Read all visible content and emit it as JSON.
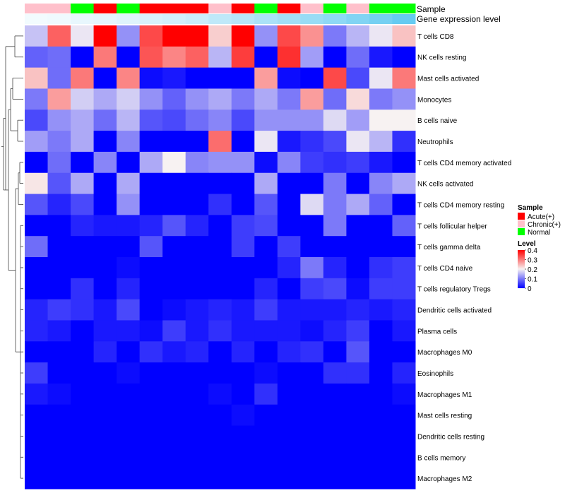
{
  "chart_data": {
    "type": "heatmap",
    "columns": 17,
    "sample_bar_label": "Sample",
    "gene_bar_label": "Gene expression level",
    "sample_annotation": [
      "Chronic(+)",
      "Chronic(+)",
      "Normal",
      "Acute(+)",
      "Normal",
      "Acute(+)",
      "Acute(+)",
      "Acute(+)",
      "Chronic(+)",
      "Acute(+)",
      "Normal",
      "Acute(+)",
      "Chronic(+)",
      "Normal",
      "Chronic(+)",
      "Normal",
      "Normal"
    ],
    "gene_expression_annotation": [
      0.08,
      0.1,
      0.14,
      0.16,
      0.2,
      0.24,
      0.28,
      0.32,
      0.4,
      0.45,
      0.52,
      0.58,
      0.64,
      0.7,
      0.78,
      0.86,
      0.95
    ],
    "rows": [
      "T cells CD8",
      "NK cells resting",
      "Mast cells activated",
      "Monocytes",
      "B cells naive",
      "Neutrophils",
      "T cells CD4 memory activated",
      "NK cells activated",
      "T cells CD4 memory resting",
      "T cells follicular helper",
      "T cells gamma delta",
      "T cells CD4 naive",
      "T cells regulatory  Tregs",
      "Dendritic cells activated",
      "Plasma cells",
      "Macrophages M0",
      "Eosinophils",
      "Macrophages M1",
      "Mast cells resting",
      "Dendritic cells resting",
      "B cells memory",
      "Macrophages M2"
    ],
    "values": [
      [
        0.16,
        0.32,
        0.19,
        0.4,
        0.12,
        0.34,
        0.4,
        0.4,
        0.23,
        0.4,
        0.12,
        0.34,
        0.28,
        0.1,
        0.15,
        0.19,
        0.24
      ],
      [
        0.08,
        0.09,
        0.0,
        0.3,
        0.0,
        0.33,
        0.29,
        0.32,
        0.15,
        0.35,
        0.0,
        0.36,
        0.13,
        0.0,
        0.09,
        0.02,
        0.0
      ],
      [
        0.24,
        0.09,
        0.3,
        0.0,
        0.29,
        0.01,
        0.02,
        0.0,
        0.0,
        0.0,
        0.27,
        0.01,
        0.0,
        0.34,
        0.06,
        0.19,
        0.3
      ],
      [
        0.1,
        0.27,
        0.17,
        0.14,
        0.17,
        0.12,
        0.08,
        0.12,
        0.14,
        0.1,
        0.14,
        0.1,
        0.27,
        0.09,
        0.22,
        0.1,
        0.12
      ],
      [
        0.06,
        0.12,
        0.14,
        0.09,
        0.15,
        0.07,
        0.06,
        0.09,
        0.11,
        0.06,
        0.12,
        0.12,
        0.12,
        0.18,
        0.13,
        0.2,
        0.2
      ],
      [
        0.13,
        0.1,
        0.14,
        0.0,
        0.11,
        0.0,
        0.0,
        0.0,
        0.31,
        0.0,
        0.19,
        0.02,
        0.04,
        0.06,
        0.19,
        0.15,
        0.04
      ],
      [
        0.0,
        0.09,
        0.0,
        0.11,
        0.0,
        0.14,
        0.2,
        0.11,
        0.12,
        0.12,
        0.01,
        0.11,
        0.05,
        0.04,
        0.05,
        0.02,
        0.0
      ],
      [
        0.21,
        0.07,
        0.14,
        0.0,
        0.14,
        0.0,
        0.0,
        0.0,
        0.0,
        0.0,
        0.14,
        0.0,
        0.0,
        0.1,
        0.0,
        0.11,
        0.14
      ],
      [
        0.07,
        0.03,
        0.06,
        0.0,
        0.12,
        0.0,
        0.0,
        0.0,
        0.04,
        0.0,
        0.07,
        0.0,
        0.18,
        0.1,
        0.14,
        0.08,
        0.0
      ],
      [
        0.0,
        0.0,
        0.03,
        0.02,
        0.02,
        0.03,
        0.07,
        0.03,
        0.0,
        0.05,
        0.06,
        0.0,
        0.0,
        0.1,
        0.0,
        0.0,
        0.08
      ],
      [
        0.09,
        0.0,
        0.0,
        0.0,
        0.0,
        0.07,
        0.0,
        0.0,
        0.0,
        0.05,
        0.0,
        0.05,
        0.0,
        0.0,
        0.0,
        0.0,
        0.0
      ],
      [
        0.0,
        0.0,
        0.0,
        0.0,
        0.01,
        0.0,
        0.0,
        0.0,
        0.0,
        0.0,
        0.0,
        0.03,
        0.1,
        0.03,
        0.0,
        0.04,
        0.05
      ],
      [
        0.0,
        0.0,
        0.04,
        0.0,
        0.03,
        0.0,
        0.0,
        0.0,
        0.0,
        0.0,
        0.03,
        0.0,
        0.05,
        0.06,
        0.01,
        0.05,
        0.05
      ],
      [
        0.03,
        0.05,
        0.04,
        0.02,
        0.06,
        0.0,
        0.01,
        0.02,
        0.03,
        0.02,
        0.05,
        0.02,
        0.02,
        0.02,
        0.03,
        0.02,
        0.03
      ],
      [
        0.03,
        0.02,
        0.0,
        0.02,
        0.02,
        0.01,
        0.05,
        0.02,
        0.04,
        0.02,
        0.02,
        0.02,
        0.01,
        0.03,
        0.05,
        0.0,
        0.02
      ],
      [
        0.0,
        0.0,
        0.0,
        0.03,
        0.0,
        0.04,
        0.02,
        0.03,
        0.0,
        0.03,
        0.0,
        0.03,
        0.04,
        0.0,
        0.07,
        0.0,
        0.0
      ],
      [
        0.05,
        0.0,
        0.0,
        0.0,
        0.01,
        0.0,
        0.0,
        0.0,
        0.0,
        0.0,
        0.01,
        0.0,
        0.0,
        0.04,
        0.04,
        0.0,
        0.03
      ],
      [
        0.02,
        0.01,
        0.0,
        0.0,
        0.0,
        0.0,
        0.0,
        0.0,
        0.01,
        0.0,
        0.04,
        0.0,
        0.0,
        0.0,
        0.0,
        0.0,
        0.01
      ],
      [
        0.0,
        0.0,
        0.0,
        0.0,
        0.0,
        0.0,
        0.0,
        0.0,
        0.0,
        0.01,
        0.0,
        0.0,
        0.0,
        0.0,
        0.0,
        0.0,
        0.0
      ],
      [
        0.0,
        0.0,
        0.0,
        0.0,
        0.0,
        0.0,
        0.0,
        0.0,
        0.0,
        0.0,
        0.0,
        0.0,
        0.0,
        0.0,
        0.0,
        0.0,
        0.0
      ],
      [
        0.0,
        0.0,
        0.0,
        0.0,
        0.0,
        0.0,
        0.0,
        0.0,
        0.0,
        0.0,
        0.0,
        0.0,
        0.0,
        0.0,
        0.0,
        0.0,
        0.0
      ],
      [
        0.0,
        0.0,
        0.0,
        0.0,
        0.0,
        0.0,
        0.0,
        0.0,
        0.0,
        0.0,
        0.0,
        0.0,
        0.0,
        0.0,
        0.0,
        0.0,
        0.0
      ]
    ],
    "color_scale": {
      "low": "#0000ff",
      "mid": "#f7f2f2",
      "high": "#ff0000",
      "min": 0,
      "mid_value": 0.2,
      "max": 0.4
    },
    "gene_bar_colors": {
      "low": "#ffffff",
      "high": "#5ec8f0"
    },
    "legend": {
      "sample_title": "Sample",
      "sample_entries": [
        {
          "label": "Acute(+)",
          "color": "#ff0000"
        },
        {
          "label": "Chronic(+)",
          "color": "#ffc0cb"
        },
        {
          "label": "Normal",
          "color": "#00ff00"
        }
      ],
      "level_title": "Level",
      "level_ticks": [
        "0.4",
        "0.3",
        "0.2",
        "0.1",
        "0"
      ],
      "placement": "right"
    },
    "dendrogram": "row clustering tree on left"
  }
}
